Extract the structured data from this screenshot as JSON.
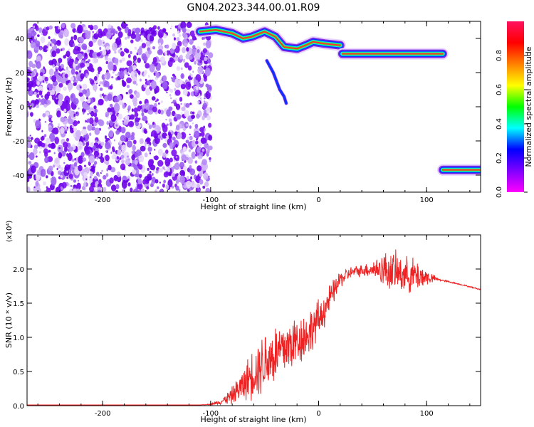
{
  "figure": {
    "title": "GN04.2023.344.00.01.R09"
  },
  "chart_data": [
    {
      "type": "heatmap",
      "xlabel": "Height of straight line (km)",
      "ylabel": "Frequency (Hz)",
      "xlim": [
        -270,
        150
      ],
      "ylim": [
        -50,
        50
      ],
      "x_ticks": [
        -200,
        -100,
        0,
        100
      ],
      "y_ticks": [
        -40,
        -20,
        0,
        20,
        40
      ],
      "grid": false,
      "colorbar": {
        "label": "Normalized spectral amplitude",
        "range": [
          0,
          1
        ],
        "ticks": [
          0.0,
          0.2,
          0.4,
          0.6,
          0.8
        ],
        "colormap": [
          "#ff00ff",
          "#8000ff",
          "#0000ff",
          "#00ffff",
          "#00ff00",
          "#ffff00",
          "#ff8000",
          "#ff0000",
          "#ff1060"
        ]
      },
      "noise_region": {
        "x_range": [
          -270,
          -100
        ],
        "y_range": [
          -50,
          48
        ],
        "color": "#7a10f0"
      },
      "tracks": [
        {
          "name": "",
          "points": [
            [
              -110,
              44
            ],
            [
              -95,
              45
            ],
            [
              -80,
              43
            ],
            [
              -70,
              40
            ],
            [
              -62,
              41
            ],
            [
              -50,
              44
            ],
            [
              -40,
              41
            ],
            [
              -32,
              35
            ],
            [
              -20,
              34
            ],
            [
              -12,
              36
            ],
            [
              -5,
              38
            ],
            [
              5,
              37
            ],
            [
              20,
              36
            ]
          ]
        },
        {
          "name": "",
          "points": [
            [
              22,
              31
            ],
            [
              115,
              31
            ]
          ]
        },
        {
          "name": "",
          "points": [
            [
              115,
              -37
            ],
            [
              150,
              -37
            ]
          ]
        },
        {
          "name": "",
          "points": [
            [
              -48,
              27
            ],
            [
              -42,
              20
            ],
            [
              -36,
              10
            ],
            [
              -32,
              6
            ],
            [
              -30,
              2
            ]
          ]
        }
      ]
    },
    {
      "type": "line",
      "xlabel": "Height of straight line (km)",
      "ylabel": "SNR (10 * v/v)",
      "y_multiplier_label": "(x10⁴)",
      "xlim": [
        -270,
        150
      ],
      "ylim": [
        0,
        2.5
      ],
      "x_ticks": [
        -200,
        -100,
        0,
        100
      ],
      "y_ticks": [
        0.0,
        0.5,
        1.0,
        1.5,
        2.0
      ],
      "grid": false,
      "series": [
        {
          "name": "",
          "color": "#ee2222",
          "x": [
            -270,
            -150,
            -110,
            -100,
            -90,
            -80,
            -70,
            -60,
            -50,
            -40,
            -30,
            -20,
            -10,
            0,
            10,
            20,
            30,
            40,
            50,
            60,
            70,
            80,
            90,
            100,
            110,
            130,
            150
          ],
          "y": [
            0.01,
            0.01,
            0.01,
            0.02,
            0.06,
            0.15,
            0.3,
            0.5,
            0.65,
            0.75,
            0.85,
            0.95,
            1.05,
            1.25,
            1.55,
            1.85,
            1.95,
            1.98,
            2.0,
            2.0,
            1.95,
            1.92,
            1.9,
            1.88,
            1.85,
            1.78,
            1.7
          ],
          "noise": [
            0.0,
            0.0,
            0.0,
            0.01,
            0.05,
            0.15,
            0.28,
            0.45,
            0.55,
            0.55,
            0.5,
            0.45,
            0.4,
            0.35,
            0.25,
            0.15,
            0.1,
            0.1,
            0.15,
            0.3,
            0.35,
            0.3,
            0.3,
            0.15,
            0.02,
            0.01,
            0.01
          ]
        }
      ]
    }
  ]
}
